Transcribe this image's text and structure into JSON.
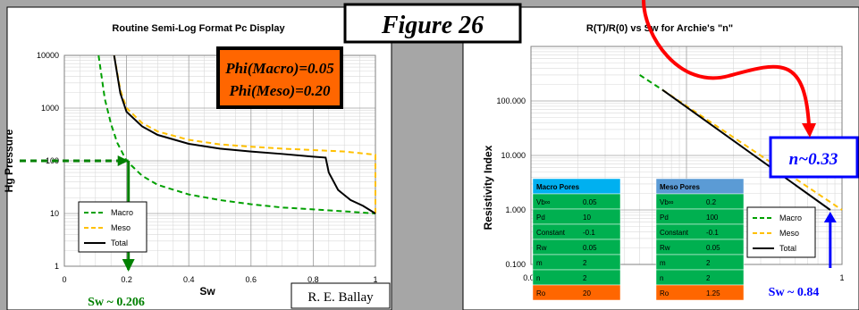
{
  "figure_label": "Figure 26",
  "author": "R. E. Ballay",
  "phi_box": {
    "line1": "Phi(Macro)=0.05",
    "line2": "Phi(Meso)=0.20"
  },
  "sw_left_annotation": "Sw ~ 0.206",
  "sw_right_annotation": "Sw ~ 0.84",
  "n_annotation": "n~0.33",
  "colors": {
    "macro": "#00a000",
    "meso": "#ffc000",
    "total": "#000000",
    "arrow_red": "#ff0000",
    "arrow_blue": "#0000ff",
    "arrow_green": "#008000",
    "phi_bg": "#ff6600"
  },
  "macro_table": {
    "header": "Macro Pores",
    "rows": [
      [
        "Vb∞",
        "0.05"
      ],
      [
        "Pd",
        "10"
      ],
      [
        "Constant",
        "-0.1"
      ],
      [
        "Rw",
        "0.05"
      ],
      [
        "m",
        "2"
      ],
      [
        "n",
        "2"
      ],
      [
        "Ro",
        "20"
      ]
    ]
  },
  "meso_table": {
    "header": "Meso Pores",
    "rows": [
      [
        "Vb∞",
        "0.2"
      ],
      [
        "Pd",
        "100"
      ],
      [
        "Constant",
        "-0.1"
      ],
      [
        "Rw",
        "0.05"
      ],
      [
        "m",
        "2"
      ],
      [
        "n",
        "2"
      ],
      [
        "Ro",
        "1.25"
      ]
    ]
  },
  "chart_data": [
    {
      "type": "line",
      "title": "Routine Semi-Log Format Pc Display",
      "xlabel": "Sw",
      "ylabel": "Hg Pressure",
      "xlim": [
        0,
        1
      ],
      "ylim": [
        1,
        10000
      ],
      "y_scale": "log",
      "x_ticks": [
        "0",
        "0.2",
        "0.4",
        "0.6",
        "0.8",
        "1"
      ],
      "y_ticks": [
        "1",
        "10",
        "100",
        "1000",
        "10000"
      ],
      "legend": {
        "placement": "bottom-left",
        "entries": [
          "Macro",
          "Meso",
          "Total"
        ]
      },
      "series": [
        {
          "name": "Macro",
          "style": "dashed",
          "x": [
            0.11,
            0.13,
            0.15,
            0.17,
            0.2,
            0.25,
            0.3,
            0.4,
            0.5,
            0.6,
            0.7,
            0.8,
            0.9,
            1.0
          ],
          "y": [
            10000,
            1500,
            500,
            220,
            100,
            52,
            35,
            23,
            18,
            15,
            13,
            12,
            11,
            10
          ]
        },
        {
          "name": "Meso",
          "style": "dashed",
          "x": [
            0.16,
            0.18,
            0.2,
            0.25,
            0.3,
            0.4,
            0.5,
            0.6,
            0.7,
            0.8,
            0.9,
            0.95,
            1.0,
            1.0
          ],
          "y": [
            10000,
            2200,
            1000,
            520,
            360,
            250,
            205,
            185,
            170,
            160,
            150,
            140,
            130,
            10
          ]
        },
        {
          "name": "Total",
          "style": "solid",
          "x": [
            0.16,
            0.18,
            0.2,
            0.25,
            0.3,
            0.4,
            0.5,
            0.6,
            0.7,
            0.8,
            0.84,
            0.85,
            0.88,
            0.92,
            0.96,
            1.0
          ],
          "y": [
            10000,
            1900,
            850,
            450,
            310,
            210,
            170,
            150,
            135,
            120,
            115,
            60,
            28,
            18,
            14,
            10
          ]
        }
      ]
    },
    {
      "type": "line",
      "title": "R(T)/R(0) vs Sw for Archie's \"n\"",
      "xlabel": "Sw",
      "ylabel": "Resistivity Index",
      "xlim": [
        0.01,
        1
      ],
      "ylim": [
        0.1,
        1000
      ],
      "x_scale": "log",
      "y_scale": "log",
      "x_ticks": [
        "0.01",
        "0.1",
        "1"
      ],
      "y_ticks": [
        "0.100",
        "1.000",
        "10.000",
        "100.000"
      ],
      "legend": {
        "placement": "bottom-right",
        "entries": [
          "Macro",
          "Meso",
          "Total"
        ]
      },
      "series": [
        {
          "name": "Macro",
          "style": "dashed",
          "x": [
            0.05,
            0.07
          ],
          "y": [
            300,
            160
          ]
        },
        {
          "name": "Meso",
          "style": "dashed",
          "x": [
            0.07,
            1.0
          ],
          "y": [
            160,
            1.0
          ]
        },
        {
          "name": "Total",
          "style": "solid",
          "x": [
            0.07,
            0.84
          ],
          "y": [
            160,
            1.0
          ]
        }
      ]
    }
  ]
}
